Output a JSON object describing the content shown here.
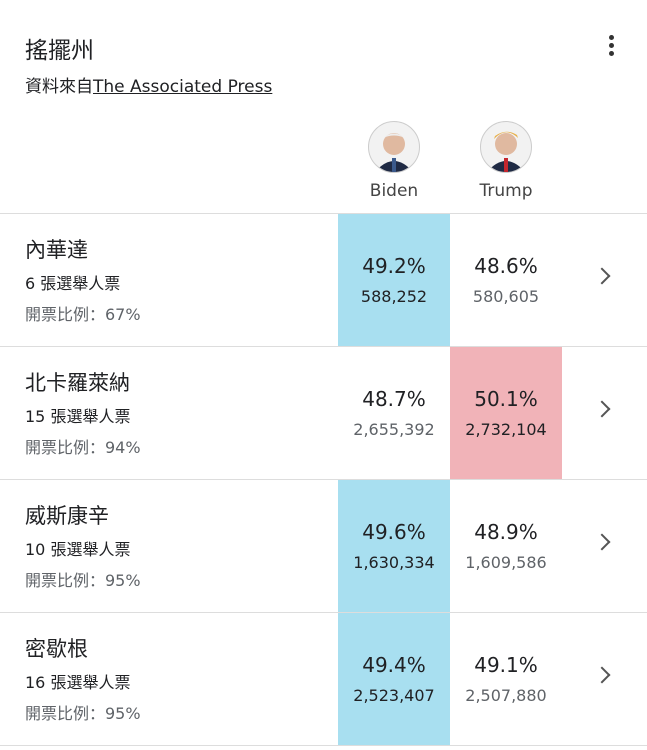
{
  "header": {
    "title": "搖擺州",
    "source_prefix": "資料來自",
    "source_link": "The Associated Press"
  },
  "candidates": [
    "Biden",
    "Trump"
  ],
  "rows": [
    {
      "state": "內華達",
      "electoral_votes": "6 張選舉人票",
      "reporting": "開票比例：67%",
      "results": [
        {
          "percent": "49.2%",
          "votes": "588,252",
          "color": "#a8dff0"
        },
        {
          "percent": "48.6%",
          "votes": "580,605"
        }
      ]
    },
    {
      "state": "北卡羅萊納",
      "electoral_votes": "15 張選舉人票",
      "reporting": "開票比例：94%",
      "results": [
        {
          "percent": "48.7%",
          "votes": "2,655,392"
        },
        {
          "percent": "50.1%",
          "votes": "2,732,104",
          "color": "#f1b3b8"
        }
      ]
    },
    {
      "state": "威斯康辛",
      "electoral_votes": "10 張選舉人票",
      "reporting": "開票比例：95%",
      "results": [
        {
          "percent": "49.6%",
          "votes": "1,630,334",
          "color": "#a8dff0"
        },
        {
          "percent": "48.9%",
          "votes": "1,609,586"
        }
      ]
    },
    {
      "state": "密歇根",
      "electoral_votes": "16 張選舉人票",
      "reporting": "開票比例：95%",
      "results": [
        {
          "percent": "49.4%",
          "votes": "2,523,407",
          "color": "#a8dff0"
        },
        {
          "percent": "49.1%",
          "votes": "2,507,880"
        }
      ]
    }
  ]
}
